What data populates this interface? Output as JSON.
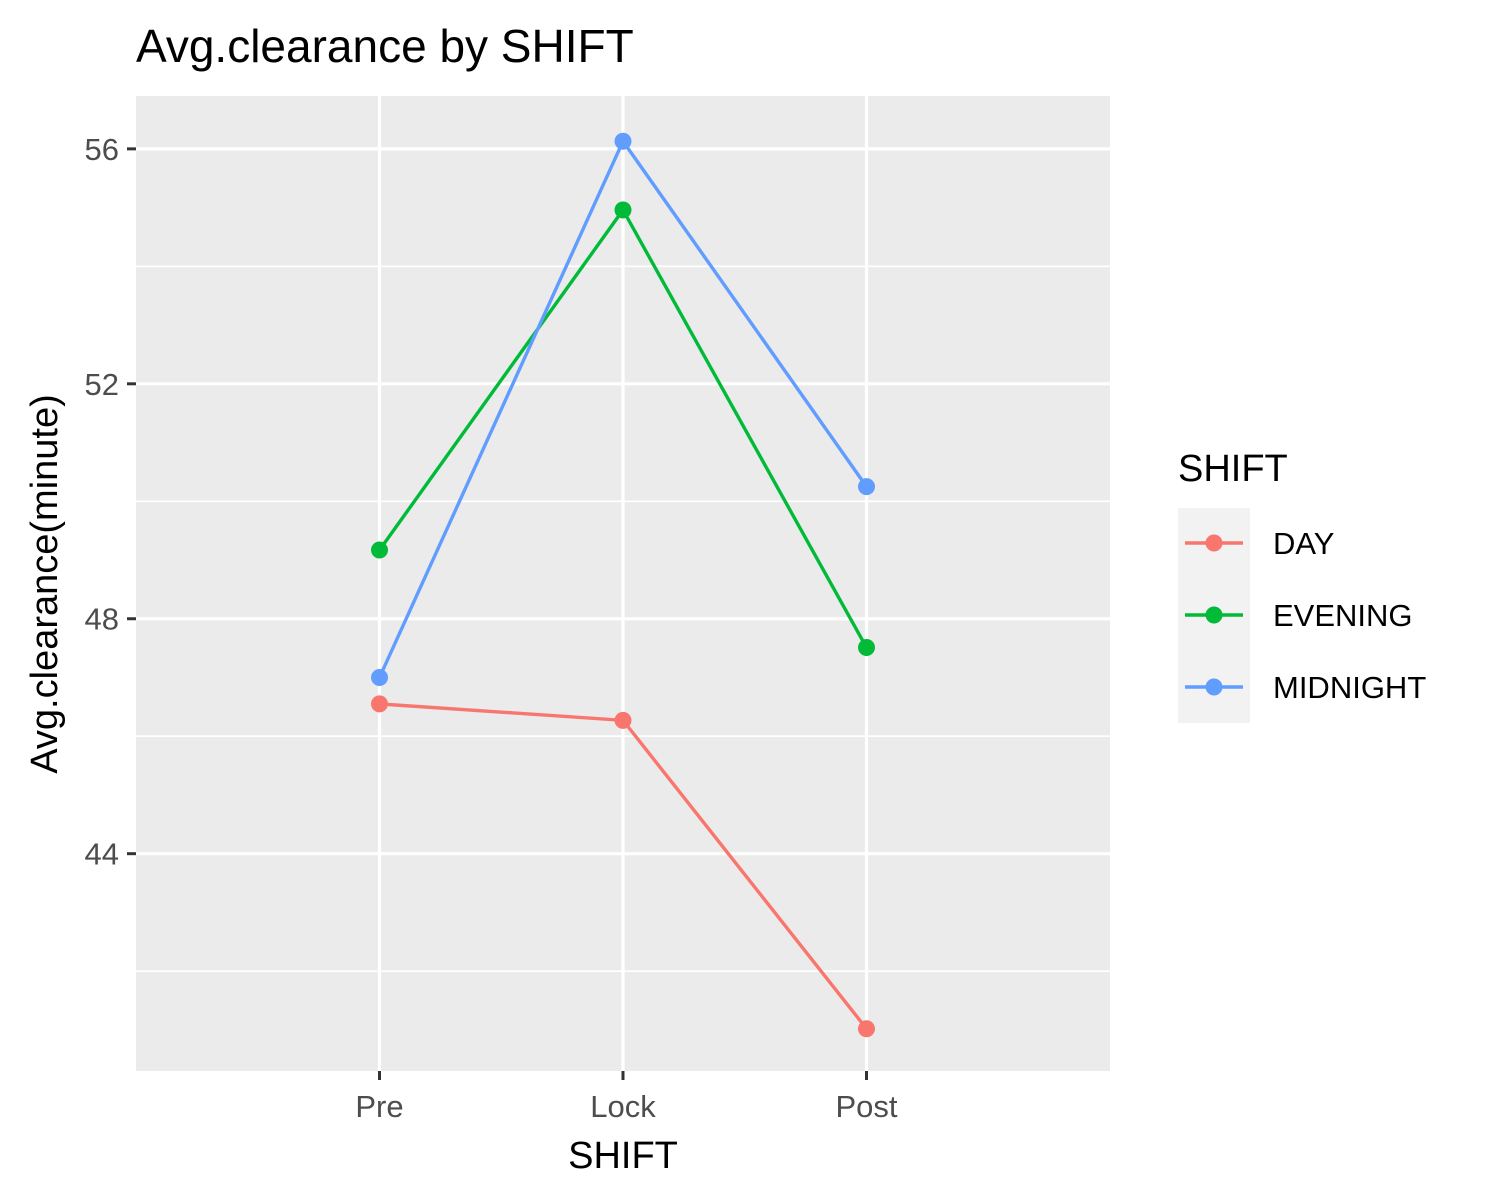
{
  "chart_data": {
    "type": "line",
    "title": "Avg.clearance by SHIFT",
    "xlabel": "SHIFT",
    "ylabel": "Avg.clearance(minute)",
    "categories": [
      "Pre",
      "Lock",
      "Post"
    ],
    "ylim": [
      40.3,
      56.9
    ],
    "yticks": [
      44,
      48,
      52,
      56
    ],
    "yticklabels": [
      "44",
      "48",
      "52",
      "56"
    ],
    "grid": true,
    "legend": {
      "title": "SHIFT",
      "position": "right"
    },
    "series": [
      {
        "name": "DAY",
        "color": "#F8766D",
        "values": [
          46.55,
          46.27,
          41.02
        ]
      },
      {
        "name": "EVENING",
        "color": "#00BA38",
        "values": [
          49.17,
          54.96,
          47.51
        ]
      },
      {
        "name": "MIDNIGHT",
        "color": "#619CFF",
        "values": [
          47.0,
          56.13,
          50.25
        ]
      }
    ]
  }
}
